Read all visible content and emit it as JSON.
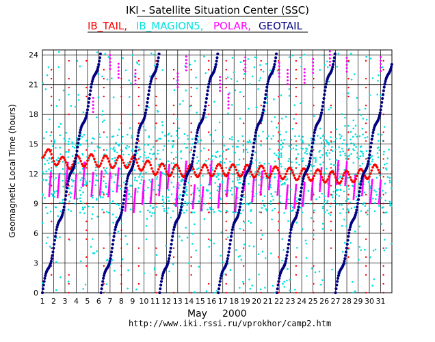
{
  "chart_data": {
    "type": "scatter",
    "title": "IKI - Satellite Situation Center (SSC)",
    "ylabel": "Geomagnetic  Local  Time  (hours)",
    "xlabel_month": "May",
    "xlabel_year": "2000",
    "url": "http://www.iki.rssi.ru/vprokhor/camp2.htm",
    "x_ticks": [
      1,
      2,
      3,
      4,
      5,
      6,
      7,
      8,
      9,
      10,
      11,
      12,
      13,
      14,
      15,
      16,
      17,
      18,
      19,
      20,
      21,
      22,
      23,
      24,
      25,
      26,
      27,
      28,
      29,
      30,
      31
    ],
    "y_ticks": [
      0,
      3,
      6,
      9,
      12,
      15,
      18,
      21,
      24
    ],
    "xlim": [
      1,
      32
    ],
    "ylim": [
      0,
      24.5
    ],
    "grid": true,
    "series": [
      {
        "name": "IB_TAIL",
        "color": "#ff0000",
        "label": "IB_TAIL,",
        "segments": [
          [
            1,
            14.2
          ],
          [
            3,
            13.0
          ],
          [
            5,
            13.4
          ],
          [
            7,
            13.2
          ],
          [
            9,
            13.2
          ],
          [
            11,
            12.5
          ],
          [
            13,
            12.3
          ],
          [
            15,
            12.3
          ],
          [
            17,
            12.4
          ],
          [
            19,
            12.3
          ],
          [
            21,
            12.2
          ],
          [
            23,
            12.0
          ],
          [
            25,
            11.9
          ],
          [
            27,
            11.6
          ],
          [
            29,
            11.8
          ],
          [
            31,
            12.5
          ]
        ]
      },
      {
        "name": "IB_MAGION5",
        "color": "#00e0e0",
        "label": "IB_MAGION5,",
        "band": [
          8,
          16
        ]
      },
      {
        "name": "POLAR",
        "color": "#ff00ff",
        "label": "POLAR,",
        "apogee_band": [
          8,
          11
        ],
        "period_days": 0.75
      },
      {
        "name": "GEOTAIL",
        "color": "#000080",
        "label": "GEOTAIL",
        "period_days": 5.2,
        "wraps": [
          1.0,
          6.2,
          11.4,
          16.6,
          21.8,
          27.0
        ]
      }
    ]
  }
}
